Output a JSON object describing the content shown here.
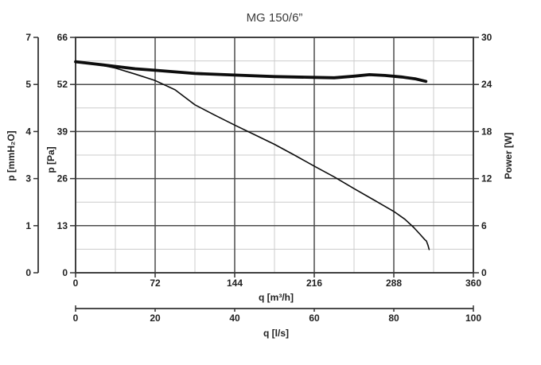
{
  "chart_data": {
    "type": "line",
    "title": "MG 150/6”",
    "x_axis_m3h": {
      "label": "q [m³/h]",
      "ticks": [
        "0",
        "72",
        "144",
        "216",
        "288",
        "360"
      ],
      "min": 0,
      "max": 360
    },
    "x_axis_ls": {
      "label": "q [l/s]",
      "ticks": [
        "0",
        "20",
        "40",
        "60",
        "80",
        "100"
      ],
      "min": 0,
      "max": 100
    },
    "left_axis_mmh2o": {
      "label": "p [mmH₂O]",
      "ticks": [
        "7",
        "5",
        "4",
        "3",
        "1",
        "0"
      ]
    },
    "left_axis_pa": {
      "label": "p [Pa]",
      "ticks": [
        "66",
        "52",
        "39",
        "26",
        "13",
        "0"
      ],
      "min": 0,
      "max": 66
    },
    "right_axis_power": {
      "label": "Power [W]",
      "ticks": [
        "30",
        "24",
        "18",
        "12",
        "6",
        "0"
      ],
      "min": 0,
      "max": 30
    },
    "grid": {
      "major_color": "#4c4c4c",
      "minor_color": "#cccccc",
      "border_color": "#3f3f3f",
      "minor_divisions_per_major": 2
    },
    "curve_color": "#0d0d0d",
    "series": [
      {
        "name": "pressure",
        "axis": "pa",
        "unit": "Pa",
        "style": "thin",
        "points": [
          [
            0,
            59.2
          ],
          [
            20,
            58.4
          ],
          [
            36,
            57.4
          ],
          [
            54,
            55.7
          ],
          [
            72,
            53.9
          ],
          [
            90,
            51.3
          ],
          [
            108,
            47.1
          ],
          [
            126,
            44.2
          ],
          [
            144,
            41.4
          ],
          [
            162,
            38.7
          ],
          [
            180,
            36.0
          ],
          [
            198,
            33.0
          ],
          [
            216,
            29.9
          ],
          [
            234,
            26.9
          ],
          [
            252,
            23.6
          ],
          [
            270,
            20.4
          ],
          [
            288,
            17.2
          ],
          [
            298,
            15.0
          ],
          [
            306,
            12.7
          ],
          [
            312,
            10.7
          ],
          [
            316,
            9.3
          ],
          [
            317.5,
            8.9
          ],
          [
            319,
            7.6
          ],
          [
            320,
            6.5
          ]
        ]
      },
      {
        "name": "power",
        "axis": "power",
        "unit": "W",
        "style": "thick",
        "points": [
          [
            0,
            26.9
          ],
          [
            18,
            26.6
          ],
          [
            36,
            26.3
          ],
          [
            54,
            26.0
          ],
          [
            72,
            25.8
          ],
          [
            90,
            25.6
          ],
          [
            108,
            25.4
          ],
          [
            144,
            25.2
          ],
          [
            180,
            25.0
          ],
          [
            216,
            24.9
          ],
          [
            234,
            24.85
          ],
          [
            252,
            25.05
          ],
          [
            266,
            25.25
          ],
          [
            280,
            25.15
          ],
          [
            295,
            24.95
          ],
          [
            308,
            24.7
          ],
          [
            317,
            24.4
          ]
        ]
      }
    ]
  }
}
